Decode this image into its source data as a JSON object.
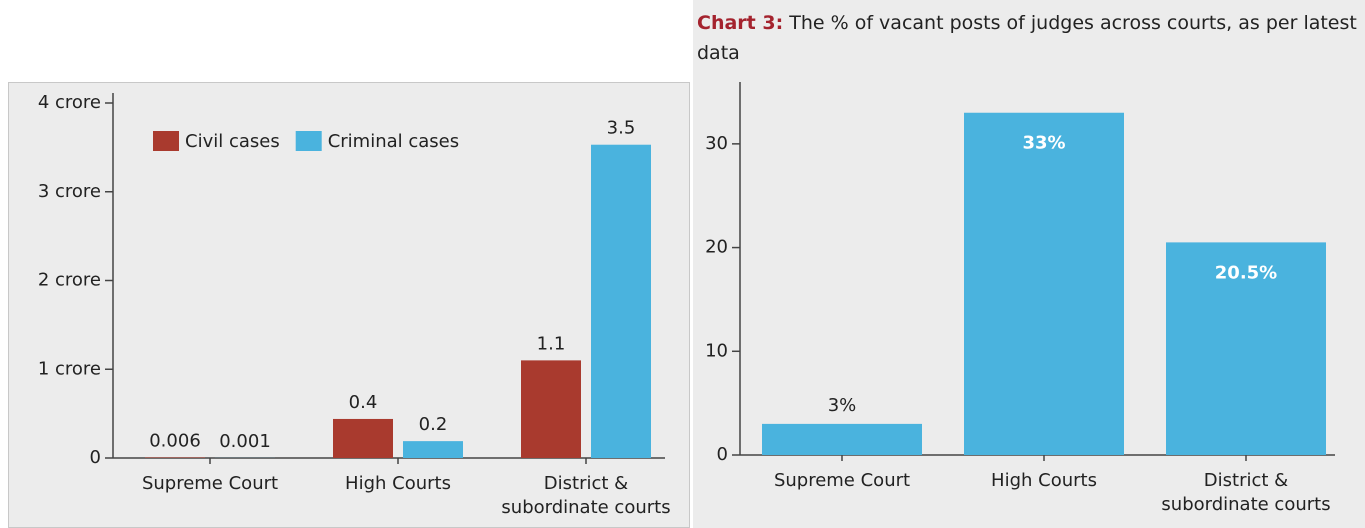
{
  "chart_data": [
    {
      "type": "bar",
      "categories": [
        "Supreme Court",
        "High Courts",
        "District & subordinate courts"
      ],
      "series": [
        {
          "name": "Civil cases",
          "color": "#a93a2e",
          "values": [
            0.006,
            0.44,
            1.1
          ],
          "value_labels": [
            "0.006",
            "0.4",
            "1.1"
          ]
        },
        {
          "name": "Criminal cases",
          "color": "#4ab3de",
          "values": [
            0.001,
            0.19,
            3.53
          ],
          "value_labels": [
            "0.001",
            "0.2",
            "3.5"
          ]
        }
      ],
      "ylim": [
        0,
        4
      ],
      "yticks": [
        0,
        {
          "value": 1,
          "label": "1 crore"
        },
        {
          "value": 2,
          "label": "2 crore"
        },
        {
          "value": 3,
          "label": "3 crore"
        },
        {
          "value": 4,
          "label": "4 crore"
        }
      ]
    },
    {
      "type": "bar",
      "title_label": "Chart 3:",
      "title": "The % of vacant posts of judges across courts, as per latest data",
      "categories": [
        "Supreme Court",
        "High Courts",
        "District & subordinate courts"
      ],
      "values": [
        3,
        33,
        20.5
      ],
      "value_labels": [
        "3%",
        "33%",
        "20.5%"
      ],
      "color": "#4ab3de",
      "ylim": [
        0,
        35
      ],
      "yticks": [
        0,
        10,
        20,
        30
      ]
    }
  ]
}
